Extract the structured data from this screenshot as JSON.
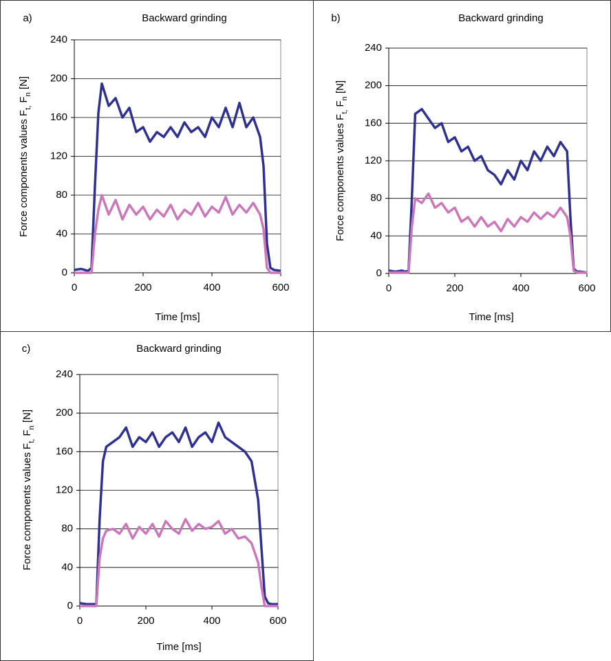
{
  "chart_data": [
    {
      "type": "line",
      "label": "a)",
      "title": "Backward grinding",
      "xlabel": "Time [ms]",
      "ylabel": [
        "Force components values F",
        "t,",
        " F",
        "n",
        " [N]"
      ],
      "x": [
        0,
        20,
        40,
        50,
        60,
        70,
        80,
        100,
        120,
        140,
        160,
        180,
        200,
        220,
        240,
        260,
        280,
        300,
        320,
        340,
        360,
        380,
        400,
        420,
        440,
        460,
        480,
        500,
        520,
        540,
        550,
        560,
        570,
        580,
        600
      ],
      "series": [
        {
          "color": "#2e3192",
          "values": [
            3,
            4,
            2,
            5,
            90,
            165,
            195,
            172,
            180,
            160,
            170,
            145,
            150,
            135,
            145,
            140,
            150,
            140,
            155,
            145,
            150,
            140,
            160,
            150,
            170,
            150,
            175,
            150,
            160,
            140,
            110,
            30,
            5,
            3,
            2
          ]
        },
        {
          "color": "#cc77bb",
          "values": [
            0,
            0,
            0,
            0,
            40,
            65,
            80,
            60,
            75,
            55,
            70,
            60,
            68,
            55,
            65,
            58,
            70,
            55,
            65,
            60,
            72,
            58,
            68,
            62,
            78,
            60,
            70,
            62,
            72,
            60,
            45,
            5,
            0,
            0,
            0
          ]
        }
      ],
      "xlim": [
        0,
        600
      ],
      "xticks": [
        0,
        200,
        400,
        600
      ],
      "ylim": [
        0,
        240
      ],
      "yticks": [
        0,
        40,
        80,
        120,
        160,
        200,
        240
      ],
      "grid": true
    },
    {
      "type": "line",
      "label": "b)",
      "title": "Backward grinding",
      "xlabel": "Time [ms]",
      "ylabel": [
        "Force components values F",
        "t,",
        " F",
        "n",
        " [N]"
      ],
      "x": [
        0,
        20,
        40,
        50,
        60,
        70,
        80,
        100,
        120,
        140,
        160,
        180,
        200,
        220,
        240,
        260,
        280,
        300,
        320,
        340,
        360,
        380,
        400,
        420,
        440,
        460,
        480,
        500,
        520,
        540,
        550,
        560,
        570,
        580,
        600
      ],
      "series": [
        {
          "color": "#2e3192",
          "values": [
            3,
            2,
            3,
            2,
            3,
            80,
            170,
            175,
            165,
            155,
            160,
            140,
            145,
            130,
            135,
            120,
            125,
            110,
            105,
            95,
            110,
            100,
            120,
            110,
            130,
            120,
            135,
            125,
            140,
            130,
            60,
            5,
            2,
            2,
            1
          ]
        },
        {
          "color": "#cc77bb",
          "values": [
            1,
            1,
            1,
            1,
            1,
            50,
            80,
            75,
            85,
            70,
            75,
            65,
            70,
            55,
            60,
            50,
            60,
            50,
            55,
            45,
            58,
            50,
            60,
            55,
            65,
            58,
            65,
            60,
            70,
            60,
            40,
            3,
            1,
            1,
            1
          ]
        }
      ],
      "xlim": [
        0,
        600
      ],
      "xticks": [
        0,
        200,
        400,
        600
      ],
      "ylim": [
        0,
        240
      ],
      "yticks": [
        0,
        40,
        80,
        120,
        160,
        200,
        240
      ],
      "grid": true
    },
    {
      "type": "line",
      "label": "c)",
      "title": "Backward grinding",
      "xlabel": "Time [ms]",
      "ylabel": [
        "Force components values F",
        "t,",
        " F",
        "n",
        " [N]"
      ],
      "x": [
        0,
        20,
        40,
        50,
        60,
        70,
        80,
        100,
        120,
        140,
        160,
        180,
        200,
        220,
        240,
        260,
        280,
        300,
        320,
        340,
        360,
        380,
        400,
        420,
        440,
        460,
        480,
        500,
        520,
        540,
        550,
        560,
        570,
        580,
        600
      ],
      "series": [
        {
          "color": "#2e3192",
          "values": [
            3,
            2,
            2,
            2,
            90,
            150,
            165,
            170,
            175,
            185,
            165,
            175,
            170,
            180,
            165,
            175,
            180,
            170,
            185,
            165,
            175,
            180,
            170,
            190,
            175,
            170,
            165,
            160,
            150,
            110,
            60,
            10,
            3,
            2,
            2
          ]
        },
        {
          "color": "#cc77bb",
          "values": [
            0,
            0,
            0,
            0,
            50,
            70,
            78,
            80,
            75,
            85,
            70,
            82,
            75,
            85,
            72,
            88,
            80,
            75,
            90,
            78,
            85,
            80,
            82,
            88,
            75,
            80,
            70,
            72,
            65,
            45,
            20,
            0,
            0,
            0,
            0
          ]
        }
      ],
      "xlim": [
        0,
        600
      ],
      "xticks": [
        0,
        200,
        400,
        600
      ],
      "ylim": [
        0,
        240
      ],
      "yticks": [
        0,
        40,
        80,
        120,
        160,
        200,
        240
      ],
      "grid": true
    }
  ]
}
